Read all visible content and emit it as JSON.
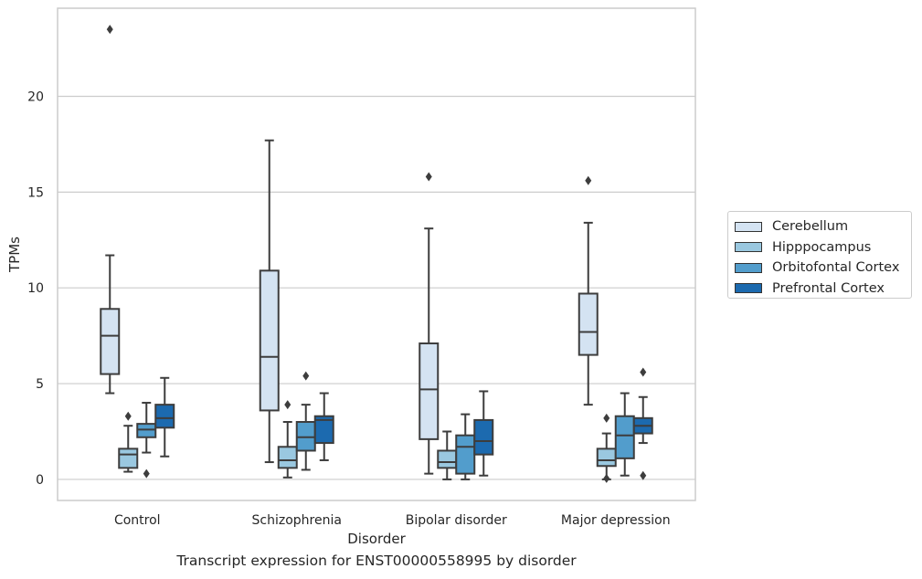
{
  "chart_data": {
    "type": "box",
    "title": "",
    "caption": "Transcript expression for ENST00000558995 by disorder",
    "xlabel": "Disorder",
    "ylabel": "TPMs",
    "ylim": [
      -1.1,
      24.6
    ],
    "yticks": [
      0,
      5,
      10,
      15,
      20
    ],
    "grid": true,
    "legend_position": "right",
    "categories": [
      "Control",
      "Schizophrenia",
      "Bipolar disorder",
      "Major depression"
    ],
    "series": [
      {
        "name": "Cerebellum",
        "color": "#d4e3f2",
        "boxes": [
          {
            "whisker_low": 4.5,
            "q1": 5.5,
            "median": 7.5,
            "q3": 8.9,
            "whisker_high": 11.7,
            "outliers": [
              23.5
            ]
          },
          {
            "whisker_low": 0.9,
            "q1": 3.6,
            "median": 6.4,
            "q3": 10.9,
            "whisker_high": 17.7,
            "outliers": []
          },
          {
            "whisker_low": 0.3,
            "q1": 2.1,
            "median": 4.7,
            "q3": 7.1,
            "whisker_high": 13.1,
            "outliers": [
              15.8
            ]
          },
          {
            "whisker_low": 3.9,
            "q1": 6.5,
            "median": 7.7,
            "q3": 9.7,
            "whisker_high": 13.4,
            "outliers": [
              15.6
            ]
          }
        ]
      },
      {
        "name": "Hipppocampus",
        "color": "#9ac8e0",
        "boxes": [
          {
            "whisker_low": 0.4,
            "q1": 0.6,
            "median": 1.3,
            "q3": 1.6,
            "whisker_high": 2.8,
            "outliers": [
              3.3
            ]
          },
          {
            "whisker_low": 0.1,
            "q1": 0.6,
            "median": 1.0,
            "q3": 1.7,
            "whisker_high": 3.0,
            "outliers": [
              3.9
            ]
          },
          {
            "whisker_low": 0.0,
            "q1": 0.6,
            "median": 0.9,
            "q3": 1.5,
            "whisker_high": 2.5,
            "outliers": []
          },
          {
            "whisker_low": 0.0,
            "q1": 0.7,
            "median": 1.0,
            "q3": 1.6,
            "whisker_high": 2.4,
            "outliers": [
              0.05,
              3.2
            ]
          }
        ]
      },
      {
        "name": "Orbitofontal Cortex",
        "color": "#529dcc",
        "boxes": [
          {
            "whisker_low": 1.4,
            "q1": 2.2,
            "median": 2.6,
            "q3": 2.9,
            "whisker_high": 4.0,
            "outliers": [
              0.3
            ]
          },
          {
            "whisker_low": 0.5,
            "q1": 1.5,
            "median": 2.2,
            "q3": 3.0,
            "whisker_high": 3.9,
            "outliers": [
              5.4
            ]
          },
          {
            "whisker_low": 0.0,
            "q1": 0.3,
            "median": 1.7,
            "q3": 2.3,
            "whisker_high": 3.4,
            "outliers": []
          },
          {
            "whisker_low": 0.2,
            "q1": 1.1,
            "median": 2.3,
            "q3": 3.3,
            "whisker_high": 4.5,
            "outliers": []
          }
        ]
      },
      {
        "name": "Prefrontal Cortex",
        "color": "#1c6aaf",
        "boxes": [
          {
            "whisker_low": 1.2,
            "q1": 2.7,
            "median": 3.2,
            "q3": 3.9,
            "whisker_high": 5.3,
            "outliers": []
          },
          {
            "whisker_low": 1.0,
            "q1": 1.9,
            "median": 3.1,
            "q3": 3.3,
            "whisker_high": 4.5,
            "outliers": []
          },
          {
            "whisker_low": 0.2,
            "q1": 1.3,
            "median": 2.0,
            "q3": 3.1,
            "whisker_high": 4.6,
            "outliers": []
          },
          {
            "whisker_low": 1.9,
            "q1": 2.4,
            "median": 2.8,
            "q3": 3.2,
            "whisker_high": 4.3,
            "outliers": [
              0.2,
              5.6
            ]
          }
        ]
      }
    ]
  }
}
